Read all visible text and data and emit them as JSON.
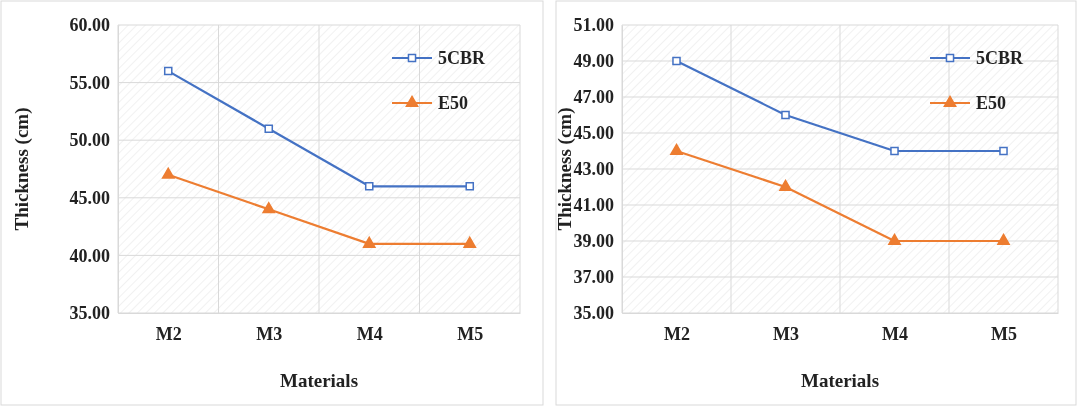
{
  "chart_data": [
    {
      "type": "line",
      "xlabel": "Materials",
      "ylabel": "Thickness (cm)",
      "categories": [
        "M2",
        "M3",
        "M4",
        "M5"
      ],
      "series": [
        {
          "name": "5CBR",
          "color": "#4472c4",
          "marker": "square",
          "values": [
            56,
            51,
            46,
            46
          ]
        },
        {
          "name": "E50",
          "color": "#ed7d31",
          "marker": "triangle",
          "values": [
            47,
            44,
            41,
            41
          ]
        }
      ],
      "ylim": [
        35,
        60
      ],
      "yticks": [
        {
          "value": 35,
          "label": "35.00"
        },
        {
          "value": 40,
          "label": "40.00"
        },
        {
          "value": 45,
          "label": "45.00"
        },
        {
          "value": 50,
          "label": "50.00"
        },
        {
          "value": 55,
          "label": "55.00"
        },
        {
          "value": 60,
          "label": "60.00"
        }
      ],
      "grid": true,
      "legend": "top right"
    },
    {
      "type": "line",
      "xlabel": "Materials",
      "ylabel": "Thickness (cm)",
      "categories": [
        "M2",
        "M3",
        "M4",
        "M5"
      ],
      "series": [
        {
          "name": "5CBR",
          "color": "#4472c4",
          "marker": "square",
          "values": [
            49,
            46,
            44,
            44
          ]
        },
        {
          "name": "E50",
          "color": "#ed7d31",
          "marker": "triangle",
          "values": [
            44,
            42,
            39,
            39
          ]
        }
      ],
      "ylim": [
        35,
        51
      ],
      "yticks": [
        {
          "value": 35,
          "label": "35.00"
        },
        {
          "value": 37,
          "label": "37.00"
        },
        {
          "value": 39,
          "label": "39.00"
        },
        {
          "value": 41,
          "label": "41.00"
        },
        {
          "value": 43,
          "label": "43.00"
        },
        {
          "value": 45,
          "label": "45.00"
        },
        {
          "value": 47,
          "label": "47.00"
        },
        {
          "value": 49,
          "label": "49.00"
        },
        {
          "value": 51,
          "label": "51.00"
        }
      ],
      "grid": true,
      "legend": "top right"
    }
  ]
}
